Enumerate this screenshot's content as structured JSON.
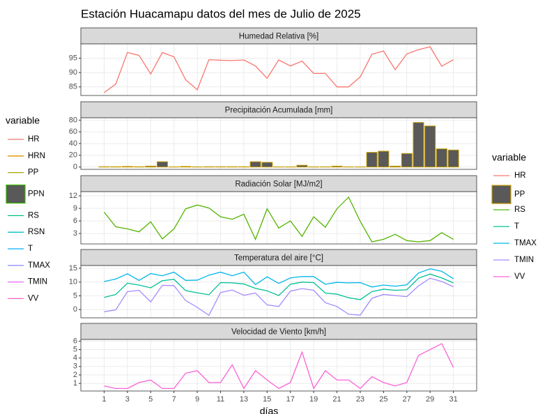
{
  "title": "Estación Huacamapu datos del mes de Julio de 2025",
  "x_label": "días",
  "x": [
    1,
    2,
    3,
    4,
    5,
    6,
    7,
    8,
    9,
    10,
    11,
    12,
    13,
    14,
    15,
    16,
    17,
    18,
    19,
    20,
    21,
    22,
    23,
    24,
    25,
    26,
    27,
    28,
    29,
    30,
    31
  ],
  "xlim": [
    -1,
    33
  ],
  "xticks": [
    1,
    3,
    5,
    7,
    9,
    11,
    13,
    15,
    17,
    19,
    21,
    23,
    25,
    27,
    29,
    31
  ],
  "grid": true,
  "chart_data": [
    {
      "type": "line",
      "title": "Humedad Relativa [%]",
      "ylim": [
        82,
        100
      ],
      "yticks": [
        85,
        90,
        95
      ],
      "series": [
        {
          "name": "HR",
          "color": "#F8766D",
          "values": [
            83,
            86,
            97,
            96,
            89.5,
            97,
            95.5,
            87.5,
            84,
            94.5,
            94.3,
            94.2,
            94.4,
            92.3,
            88,
            94.4,
            92.3,
            94,
            89.7,
            89.7,
            85,
            85,
            88.5,
            96.4,
            97.5,
            91,
            96.5,
            98,
            99,
            92.2,
            94.5
          ]
        }
      ]
    },
    {
      "type": "bar",
      "title": "Precipitación Acumulada [mm]",
      "ylim": [
        -4,
        84
      ],
      "yticks": [
        0,
        20,
        40,
        60,
        80
      ],
      "series": [
        {
          "name": "PP",
          "color": "#C49A00",
          "fill": "#595959",
          "values": [
            0.5,
            0.5,
            1,
            0.5,
            1.5,
            9,
            0.3,
            1,
            0.3,
            0.5,
            0.5,
            0.5,
            0.5,
            9,
            8,
            0.3,
            0.3,
            3,
            0.3,
            0.3,
            1.5,
            0.3,
            0.3,
            25,
            27,
            1.5,
            23,
            76,
            70,
            31,
            29
          ]
        }
      ]
    },
    {
      "type": "line",
      "title": "Radiación Solar [MJ/m2]",
      "ylim": [
        0.5,
        13
      ],
      "yticks": [
        3,
        6,
        9,
        12
      ],
      "series": [
        {
          "name": "RS",
          "color": "#53B400",
          "values": [
            8.1,
            4.6,
            4.1,
            3.4,
            5.8,
            1.7,
            4.1,
            8.9,
            9.8,
            9.1,
            7,
            6.4,
            7.6,
            1.6,
            8.9,
            4.3,
            6,
            2.3,
            7,
            4.5,
            8.9,
            11.7,
            5.9,
            1,
            1.6,
            2.8,
            1.3,
            1,
            1.3,
            3.2,
            1.6
          ]
        }
      ]
    },
    {
      "type": "line",
      "title": "Temperatura del aire [°C]",
      "ylim": [
        -3,
        16
      ],
      "yticks": [
        0,
        5,
        10,
        15
      ],
      "series": [
        {
          "name": "T",
          "color": "#00C094",
          "values": [
            4.4,
            5.5,
            9.6,
            8.9,
            7.9,
            10.5,
            11,
            6.9,
            6.1,
            5.4,
            9.8,
            9.7,
            9.3,
            7.7,
            6.8,
            5.1,
            9.2,
            10,
            9.8,
            6,
            5.6,
            4.3,
            3.6,
            6.5,
            7.4,
            7,
            7.2,
            11.4,
            12.9,
            11.5,
            9.7
          ]
        },
        {
          "name": "TMAX",
          "color": "#00B6EB",
          "values": [
            10.2,
            11.1,
            13,
            10.6,
            13.1,
            12.3,
            13.6,
            10.6,
            10.7,
            12.5,
            13.6,
            12.3,
            13.6,
            9.1,
            11.9,
            9.5,
            11.5,
            12,
            12,
            9.2,
            9.9,
            9.7,
            9.8,
            8.2,
            8.9,
            8.5,
            9,
            13.3,
            14.8,
            13.9,
            11.2
          ]
        },
        {
          "name": "TMIN",
          "color": "#A58AFF",
          "values": [
            -0.8,
            -0.1,
            6.5,
            7,
            2.8,
            8.8,
            8.7,
            3.3,
            0.8,
            -2.1,
            6.2,
            7.1,
            5.2,
            6,
            1.7,
            1.1,
            6.7,
            7.6,
            7,
            2.5,
            1.1,
            -1.7,
            -2,
            4.1,
            5.5,
            5.1,
            4.7,
            8.6,
            11.4,
            10.2,
            8.3
          ]
        }
      ]
    },
    {
      "type": "line",
      "title": "Velocidad de Viento [km/h]",
      "ylim": [
        0.1,
        6.2
      ],
      "yticks": [
        1,
        2,
        3,
        4,
        5,
        6
      ],
      "series": [
        {
          "name": "VV",
          "color": "#FB61D7",
          "values": [
            0.7,
            0.4,
            0.4,
            1.1,
            1.4,
            0.4,
            0.4,
            2.2,
            2.5,
            1.1,
            1.1,
            3.2,
            0.4,
            2.5,
            1.4,
            0.4,
            1.1,
            4.7,
            0.4,
            2.5,
            1.4,
            1.4,
            0.4,
            1.8,
            1.1,
            0.7,
            1.1,
            4.3,
            5,
            5.7,
            2.9
          ]
        }
      ]
    }
  ],
  "legend_left": {
    "title": "variable",
    "items": [
      {
        "name": "HR",
        "color": "#F8766D"
      },
      {
        "name": "HRN",
        "color": "#D89000"
      },
      {
        "name": "PP",
        "color": "#A3A500"
      },
      {
        "name": "PPN",
        "color": "#39B600",
        "fill": "#595959"
      },
      {
        "name": "RS",
        "color": "#00BF7D"
      },
      {
        "name": "RSN",
        "color": "#00BFC4"
      },
      {
        "name": "T",
        "color": "#00B0F6"
      },
      {
        "name": "TMAX",
        "color": "#9590FF"
      },
      {
        "name": "TMIN",
        "color": "#E76BF3"
      },
      {
        "name": "VV",
        "color": "#FF62BC"
      }
    ]
  },
  "legend_right": {
    "title": "variable"
  }
}
